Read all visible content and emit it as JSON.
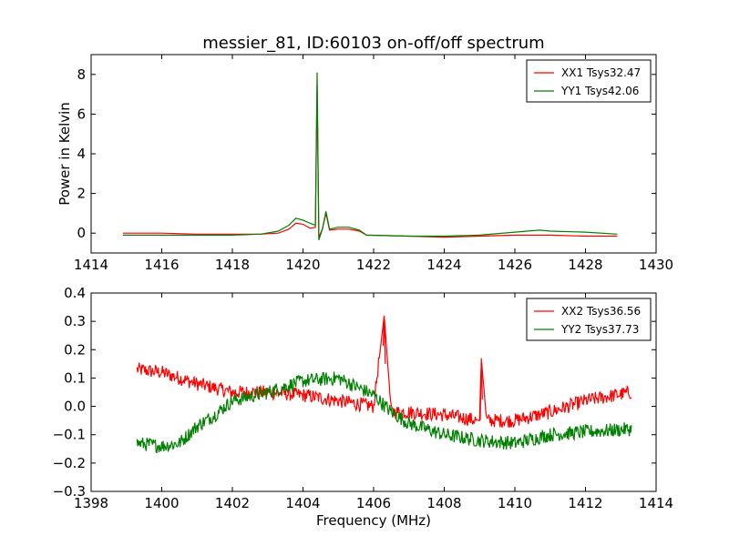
{
  "chart_data": [
    {
      "type": "line",
      "title": "messier_81, ID:60103 on-off/off spectrum",
      "xlabel": "",
      "ylabel": "Power in Kelvin",
      "xlim": [
        1414,
        1430
      ],
      "ylim": [
        -1,
        9
      ],
      "xticks": [
        1414,
        1416,
        1418,
        1420,
        1422,
        1424,
        1426,
        1428,
        1430
      ],
      "yticks": [
        0,
        2,
        4,
        6,
        8
      ],
      "grid": false,
      "legend_position": "top-right",
      "series": [
        {
          "name": "XX1 Tsys32.47",
          "color": "#ff0000",
          "points": [
            [
              1414.9,
              0.0
            ],
            [
              1416,
              0.0
            ],
            [
              1417,
              -0.05
            ],
            [
              1418,
              -0.05
            ],
            [
              1418.8,
              -0.05
            ],
            [
              1419.3,
              0.0
            ],
            [
              1419.6,
              0.2
            ],
            [
              1419.8,
              0.5
            ],
            [
              1420.0,
              0.45
            ],
            [
              1420.2,
              0.25
            ],
            [
              1420.35,
              0.3
            ],
            [
              1420.4,
              7.5
            ],
            [
              1420.45,
              -0.2
            ],
            [
              1420.55,
              0.2
            ],
            [
              1420.65,
              1.0
            ],
            [
              1420.75,
              0.15
            ],
            [
              1421,
              0.2
            ],
            [
              1421.3,
              0.2
            ],
            [
              1421.6,
              0.1
            ],
            [
              1421.8,
              -0.1
            ],
            [
              1423,
              -0.15
            ],
            [
              1424,
              -0.2
            ],
            [
              1425,
              -0.15
            ],
            [
              1426,
              -0.1
            ],
            [
              1426.7,
              -0.1
            ],
            [
              1427,
              -0.1
            ],
            [
              1428,
              -0.15
            ],
            [
              1428.9,
              -0.15
            ]
          ]
        },
        {
          "name": "YY1 Tsys42.06",
          "color": "#008000",
          "points": [
            [
              1414.9,
              -0.1
            ],
            [
              1416,
              -0.1
            ],
            [
              1417,
              -0.1
            ],
            [
              1418,
              -0.1
            ],
            [
              1418.8,
              -0.05
            ],
            [
              1419.3,
              0.1
            ],
            [
              1419.6,
              0.4
            ],
            [
              1419.8,
              0.75
            ],
            [
              1420.0,
              0.65
            ],
            [
              1420.2,
              0.5
            ],
            [
              1420.35,
              0.4
            ],
            [
              1420.4,
              8.1
            ],
            [
              1420.45,
              -0.35
            ],
            [
              1420.55,
              0.2
            ],
            [
              1420.65,
              1.1
            ],
            [
              1420.75,
              0.2
            ],
            [
              1421,
              0.3
            ],
            [
              1421.3,
              0.3
            ],
            [
              1421.6,
              0.15
            ],
            [
              1421.8,
              -0.1
            ],
            [
              1423,
              -0.15
            ],
            [
              1424,
              -0.15
            ],
            [
              1425,
              -0.1
            ],
            [
              1426,
              0.05
            ],
            [
              1426.7,
              0.15
            ],
            [
              1427,
              0.1
            ],
            [
              1428,
              0.05
            ],
            [
              1428.9,
              -0.05
            ]
          ]
        }
      ]
    },
    {
      "type": "line",
      "title": "",
      "xlabel": "Frequency (MHz)",
      "ylabel": "",
      "xlim": [
        1398,
        1414
      ],
      "ylim": [
        -0.3,
        0.4
      ],
      "xticks": [
        1398,
        1400,
        1402,
        1404,
        1406,
        1408,
        1410,
        1412,
        1414
      ],
      "yticks": [
        -0.3,
        -0.2,
        -0.1,
        0.0,
        0.1,
        0.2,
        0.3,
        0.4
      ],
      "ytick_labels": [
        "−0.3",
        "−0.2",
        "−0.1",
        "0.0",
        "0.1",
        "0.2",
        "0.3",
        "0.4"
      ],
      "grid": false,
      "legend_position": "top-right",
      "noise_amplitude": 0.025,
      "series": [
        {
          "name": "XX2 Tsys36.56",
          "color": "#ff0000",
          "points": [
            [
              1399.3,
              0.13
            ],
            [
              1400,
              0.12
            ],
            [
              1401,
              0.08
            ],
            [
              1402,
              0.05
            ],
            [
              1403,
              0.05
            ],
            [
              1404,
              0.04
            ],
            [
              1405,
              0.02
            ],
            [
              1406,
              0.0
            ],
            [
              1406.3,
              0.32
            ],
            [
              1406.5,
              -0.02
            ],
            [
              1407,
              -0.02
            ],
            [
              1408,
              -0.03
            ],
            [
              1409,
              -0.05
            ],
            [
              1409.05,
              0.17
            ],
            [
              1409.2,
              -0.05
            ],
            [
              1410,
              -0.05
            ],
            [
              1411,
              -0.02
            ],
            [
              1412,
              0.02
            ],
            [
              1413.3,
              0.05
            ]
          ]
        },
        {
          "name": "YY2 Tsys37.73",
          "color": "#008000",
          "points": [
            [
              1399.3,
              -0.13
            ],
            [
              1400,
              -0.14
            ],
            [
              1400.5,
              -0.13
            ],
            [
              1401,
              -0.07
            ],
            [
              1401.5,
              -0.03
            ],
            [
              1402,
              0.02
            ],
            [
              1403,
              0.05
            ],
            [
              1404,
              0.09
            ],
            [
              1405,
              0.1
            ],
            [
              1406,
              0.04
            ],
            [
              1406.5,
              -0.02
            ],
            [
              1407,
              -0.06
            ],
            [
              1408,
              -0.1
            ],
            [
              1409,
              -0.12
            ],
            [
              1410,
              -0.13
            ],
            [
              1411,
              -0.1
            ],
            [
              1412,
              -0.09
            ],
            [
              1413.3,
              -0.08
            ]
          ]
        }
      ]
    }
  ]
}
